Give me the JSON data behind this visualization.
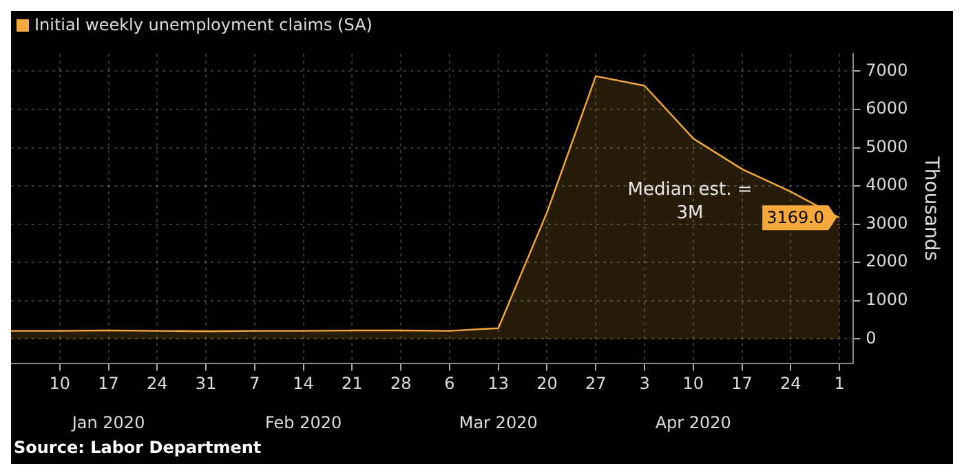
{
  "chart_data": {
    "type": "area",
    "ylabel": "Thousands",
    "x": [
      "2020-01-03",
      "2020-01-10",
      "2020-01-17",
      "2020-01-24",
      "2020-01-31",
      "2020-02-07",
      "2020-02-14",
      "2020-02-21",
      "2020-02-28",
      "2020-03-06",
      "2020-03-13",
      "2020-03-20",
      "2020-03-27",
      "2020-04-03",
      "2020-04-10",
      "2020-04-17",
      "2020-04-24",
      "2020-05-01"
    ],
    "series": [
      {
        "name": "Initial weekly unemployment claims (SA)",
        "color": "#f5a93a",
        "values": [
          210,
          210,
          220,
          210,
          200,
          210,
          210,
          220,
          220,
          210,
          280,
          3310,
          6870,
          6620,
          5240,
          4440,
          3850,
          3169
        ],
        "value_labels": [
          null,
          null,
          null,
          null,
          null,
          null,
          null,
          null,
          null,
          null,
          null,
          null,
          null,
          null,
          null,
          null,
          null,
          "3169.0"
        ]
      }
    ],
    "xlim": [
      "2020-01-03",
      "2020-05-03"
    ],
    "xticks": [
      {
        "value": "2020-01-10",
        "label": "10"
      },
      {
        "value": "2020-01-17",
        "label": "17"
      },
      {
        "value": "2020-01-24",
        "label": "24"
      },
      {
        "value": "2020-01-31",
        "label": "31"
      },
      {
        "value": "2020-02-07",
        "label": "7"
      },
      {
        "value": "2020-02-14",
        "label": "14"
      },
      {
        "value": "2020-02-21",
        "label": "21"
      },
      {
        "value": "2020-02-28",
        "label": "28"
      },
      {
        "value": "2020-03-06",
        "label": "6"
      },
      {
        "value": "2020-03-13",
        "label": "13"
      },
      {
        "value": "2020-03-20",
        "label": "20"
      },
      {
        "value": "2020-03-27",
        "label": "27"
      },
      {
        "value": "2020-04-03",
        "label": "3"
      },
      {
        "value": "2020-04-10",
        "label": "10"
      },
      {
        "value": "2020-04-17",
        "label": "17"
      },
      {
        "value": "2020-04-24",
        "label": "24"
      },
      {
        "value": "2020-05-01",
        "label": "1"
      }
    ],
    "x2lim": [
      "2020-01-03",
      "2020-05-03"
    ],
    "x2ticks": [
      {
        "value": "2020-01-17",
        "label": "Jan 2020"
      },
      {
        "value": "2020-02-14",
        "label": "Feb 2020"
      },
      {
        "value": "2020-03-13",
        "label": "Mar 2020"
      },
      {
        "value": "2020-04-10",
        "label": "Apr 2020"
      }
    ],
    "ylim": [
      -650,
      7450
    ],
    "yticks": [
      0,
      1000,
      2000,
      3000,
      4000,
      5000,
      6000,
      7000
    ],
    "grid": true,
    "line_style": "solid",
    "marker": "none",
    "legend": "top left",
    "annotations": [
      "Median est. =\n3M",
      "Source: Labor Department"
    ]
  }
}
